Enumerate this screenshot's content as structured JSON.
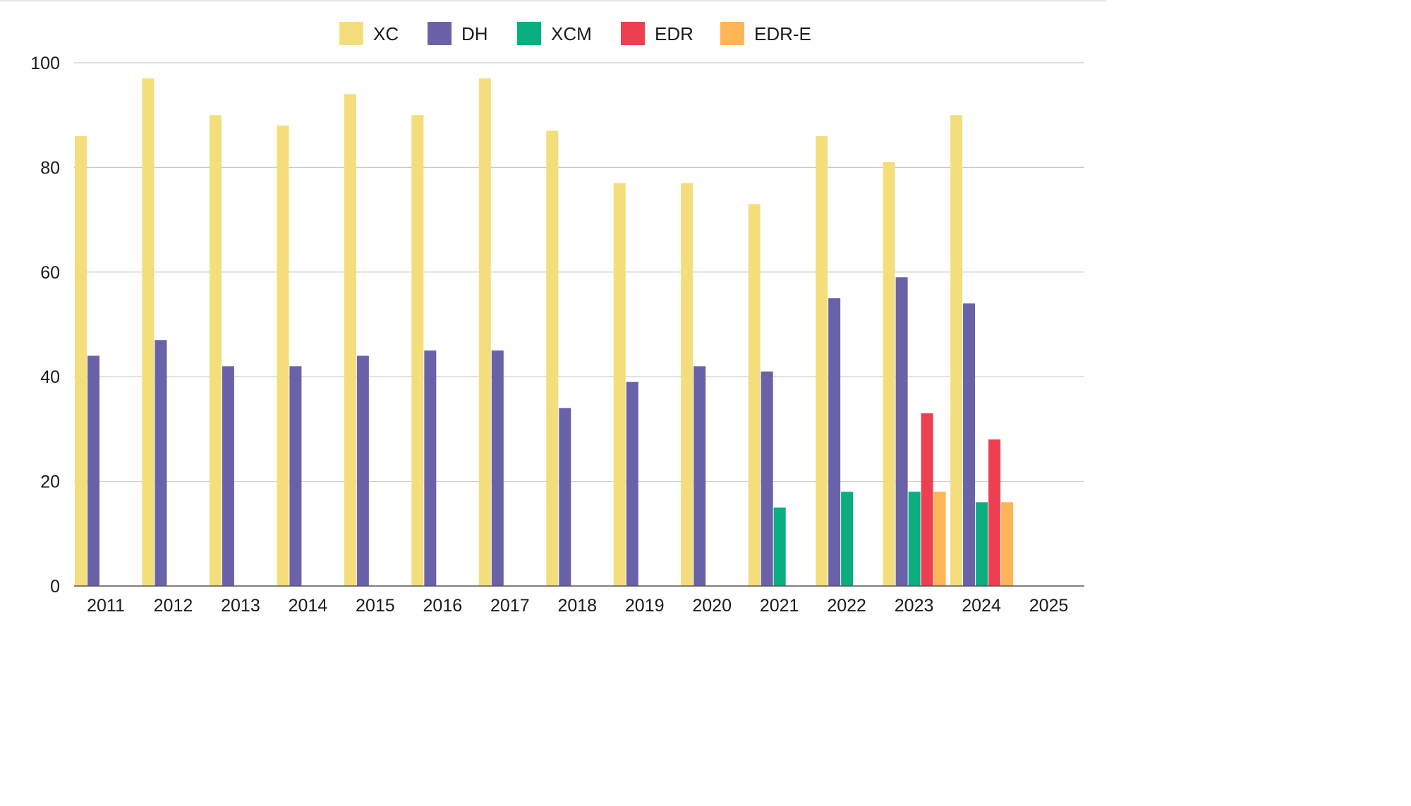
{
  "chart_data": {
    "type": "bar",
    "title": "",
    "xlabel": "",
    "ylabel": "",
    "categories": [
      "2011",
      "2012",
      "2013",
      "2014",
      "2015",
      "2016",
      "2017",
      "2018",
      "2019",
      "2020",
      "2021",
      "2022",
      "2023",
      "2024",
      "2025"
    ],
    "ylim": [
      0,
      100
    ],
    "yticks": [
      0,
      20,
      40,
      60,
      80,
      100
    ],
    "grid": true,
    "legend_position": "top-center",
    "series": [
      {
        "name": "XC",
        "color": "#F4DE7C",
        "values": [
          86,
          97,
          90,
          88,
          94,
          90,
          97,
          87,
          77,
          77,
          73,
          86,
          81,
          90,
          null
        ]
      },
      {
        "name": "DH",
        "color": "#6A62A8",
        "values": [
          44,
          47,
          42,
          42,
          44,
          45,
          45,
          34,
          39,
          42,
          41,
          55,
          59,
          54,
          null
        ]
      },
      {
        "name": "XCM",
        "color": "#0AAE80",
        "values": [
          null,
          null,
          null,
          null,
          null,
          null,
          null,
          null,
          null,
          null,
          15,
          18,
          18,
          16,
          null
        ]
      },
      {
        "name": "EDR",
        "color": "#EE3F52",
        "values": [
          null,
          null,
          null,
          null,
          null,
          null,
          null,
          null,
          null,
          null,
          null,
          null,
          33,
          28,
          null
        ]
      },
      {
        "name": "EDR-E",
        "color": "#FDB555",
        "values": [
          null,
          null,
          null,
          null,
          null,
          null,
          null,
          null,
          null,
          null,
          null,
          null,
          18,
          16,
          null
        ]
      }
    ]
  }
}
